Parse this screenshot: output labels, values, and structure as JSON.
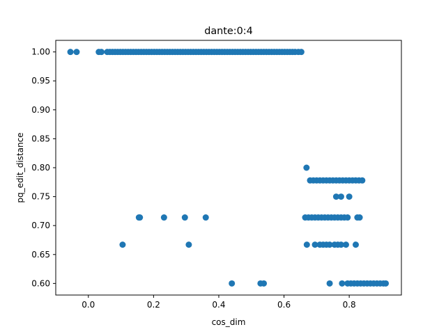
{
  "chart_data": {
    "type": "scatter",
    "title": "dante:0:4",
    "xlabel": "cos_dim",
    "ylabel": "pq_edit_distance",
    "xlim": [
      -0.1,
      0.96
    ],
    "ylim": [
      0.58,
      1.02
    ],
    "grid": false,
    "marker_color": "#1f77b4",
    "x_ticks": [
      0.0,
      0.2,
      0.4,
      0.6,
      0.8
    ],
    "x_tick_labels": [
      "0.0",
      "0.2",
      "0.4",
      "0.6",
      "0.8"
    ],
    "y_ticks": [
      0.6,
      0.65,
      0.7,
      0.75,
      0.8,
      0.85,
      0.9,
      0.95,
      1.0
    ],
    "y_tick_labels": [
      "0.60",
      "0.65",
      "0.70",
      "0.75",
      "0.80",
      "0.85",
      "0.90",
      "0.95",
      "1.00"
    ],
    "series": [
      {
        "points": [
          [
            -0.055,
            1.0
          ],
          [
            -0.036,
            1.0
          ],
          [
            0.032,
            1.0
          ],
          [
            0.04,
            1.0
          ],
          [
            0.058,
            1.0
          ],
          [
            0.066,
            1.0
          ],
          [
            0.074,
            1.0
          ],
          [
            0.082,
            1.0
          ],
          [
            0.09,
            1.0
          ],
          [
            0.098,
            1.0
          ],
          [
            0.106,
            1.0
          ],
          [
            0.114,
            1.0
          ],
          [
            0.122,
            1.0
          ],
          [
            0.13,
            1.0
          ],
          [
            0.138,
            1.0
          ],
          [
            0.146,
            1.0
          ],
          [
            0.154,
            1.0
          ],
          [
            0.162,
            1.0
          ],
          [
            0.17,
            1.0
          ],
          [
            0.178,
            1.0
          ],
          [
            0.186,
            1.0
          ],
          [
            0.194,
            1.0
          ],
          [
            0.202,
            1.0
          ],
          [
            0.21,
            1.0
          ],
          [
            0.218,
            1.0
          ],
          [
            0.226,
            1.0
          ],
          [
            0.234,
            1.0
          ],
          [
            0.242,
            1.0
          ],
          [
            0.25,
            1.0
          ],
          [
            0.258,
            1.0
          ],
          [
            0.266,
            1.0
          ],
          [
            0.274,
            1.0
          ],
          [
            0.282,
            1.0
          ],
          [
            0.29,
            1.0
          ],
          [
            0.298,
            1.0
          ],
          [
            0.306,
            1.0
          ],
          [
            0.314,
            1.0
          ],
          [
            0.322,
            1.0
          ],
          [
            0.33,
            1.0
          ],
          [
            0.338,
            1.0
          ],
          [
            0.346,
            1.0
          ],
          [
            0.354,
            1.0
          ],
          [
            0.362,
            1.0
          ],
          [
            0.37,
            1.0
          ],
          [
            0.378,
            1.0
          ],
          [
            0.386,
            1.0
          ],
          [
            0.394,
            1.0
          ],
          [
            0.402,
            1.0
          ],
          [
            0.41,
            1.0
          ],
          [
            0.418,
            1.0
          ],
          [
            0.426,
            1.0
          ],
          [
            0.434,
            1.0
          ],
          [
            0.442,
            1.0
          ],
          [
            0.45,
            1.0
          ],
          [
            0.458,
            1.0
          ],
          [
            0.466,
            1.0
          ],
          [
            0.474,
            1.0
          ],
          [
            0.482,
            1.0
          ],
          [
            0.49,
            1.0
          ],
          [
            0.498,
            1.0
          ],
          [
            0.506,
            1.0
          ],
          [
            0.514,
            1.0
          ],
          [
            0.522,
            1.0
          ],
          [
            0.53,
            1.0
          ],
          [
            0.538,
            1.0
          ],
          [
            0.546,
            1.0
          ],
          [
            0.554,
            1.0
          ],
          [
            0.562,
            1.0
          ],
          [
            0.57,
            1.0
          ],
          [
            0.578,
            1.0
          ],
          [
            0.586,
            1.0
          ],
          [
            0.594,
            1.0
          ],
          [
            0.602,
            1.0
          ],
          [
            0.61,
            1.0
          ],
          [
            0.618,
            1.0
          ],
          [
            0.626,
            1.0
          ],
          [
            0.634,
            1.0
          ],
          [
            0.644,
            1.0
          ],
          [
            0.653,
            1.0
          ],
          [
            0.669,
            0.8
          ],
          [
            0.68,
            0.778
          ],
          [
            0.69,
            0.778
          ],
          [
            0.7,
            0.778
          ],
          [
            0.71,
            0.778
          ],
          [
            0.72,
            0.778
          ],
          [
            0.73,
            0.778
          ],
          [
            0.74,
            0.778
          ],
          [
            0.75,
            0.778
          ],
          [
            0.76,
            0.778
          ],
          [
            0.77,
            0.778
          ],
          [
            0.78,
            0.778
          ],
          [
            0.79,
            0.778
          ],
          [
            0.8,
            0.778
          ],
          [
            0.81,
            0.778
          ],
          [
            0.82,
            0.778
          ],
          [
            0.83,
            0.778
          ],
          [
            0.84,
            0.778
          ],
          [
            0.76,
            0.75
          ],
          [
            0.775,
            0.75
          ],
          [
            0.8,
            0.75
          ],
          [
            0.155,
            0.714
          ],
          [
            0.158,
            0.714
          ],
          [
            0.232,
            0.714
          ],
          [
            0.296,
            0.714
          ],
          [
            0.36,
            0.714
          ],
          [
            0.665,
            0.714
          ],
          [
            0.675,
            0.714
          ],
          [
            0.685,
            0.714
          ],
          [
            0.695,
            0.714
          ],
          [
            0.705,
            0.714
          ],
          [
            0.715,
            0.714
          ],
          [
            0.725,
            0.714
          ],
          [
            0.735,
            0.714
          ],
          [
            0.745,
            0.714
          ],
          [
            0.755,
            0.714
          ],
          [
            0.765,
            0.714
          ],
          [
            0.775,
            0.714
          ],
          [
            0.785,
            0.714
          ],
          [
            0.795,
            0.714
          ],
          [
            0.825,
            0.714
          ],
          [
            0.832,
            0.714
          ],
          [
            0.105,
            0.667
          ],
          [
            0.308,
            0.667
          ],
          [
            0.67,
            0.667
          ],
          [
            0.695,
            0.667
          ],
          [
            0.71,
            0.667
          ],
          [
            0.72,
            0.667
          ],
          [
            0.73,
            0.667
          ],
          [
            0.74,
            0.667
          ],
          [
            0.755,
            0.667
          ],
          [
            0.765,
            0.667
          ],
          [
            0.775,
            0.667
          ],
          [
            0.79,
            0.667
          ],
          [
            0.82,
            0.667
          ],
          [
            0.44,
            0.6
          ],
          [
            0.528,
            0.6
          ],
          [
            0.538,
            0.6
          ],
          [
            0.74,
            0.6
          ],
          [
            0.778,
            0.6
          ],
          [
            0.795,
            0.6
          ],
          [
            0.805,
            0.6
          ],
          [
            0.815,
            0.6
          ],
          [
            0.825,
            0.6
          ],
          [
            0.835,
            0.6
          ],
          [
            0.845,
            0.6
          ],
          [
            0.855,
            0.6
          ],
          [
            0.865,
            0.6
          ],
          [
            0.875,
            0.6
          ],
          [
            0.885,
            0.6
          ],
          [
            0.895,
            0.6
          ],
          [
            0.905,
            0.6
          ],
          [
            0.912,
            0.6
          ]
        ]
      }
    ]
  }
}
